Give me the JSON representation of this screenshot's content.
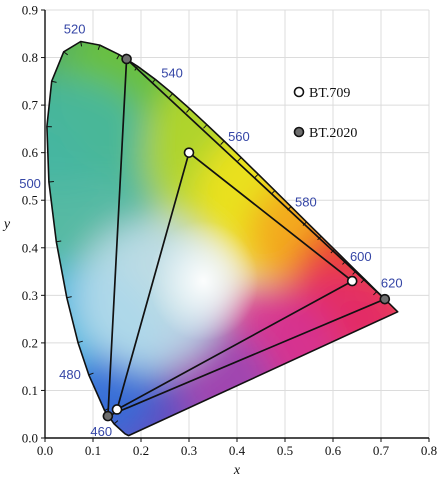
{
  "chart_data": {
    "type": "scatter",
    "title": "",
    "xlabel": "x",
    "ylabel": "y",
    "xlim": [
      0.0,
      0.8
    ],
    "ylim": [
      0.0,
      0.9
    ],
    "x_ticks": [
      "0.0",
      "0.1",
      "0.2",
      "0.3",
      "0.4",
      "0.5",
      "0.6",
      "0.7",
      "0.8"
    ],
    "y_ticks": [
      "0.0",
      "0.1",
      "0.2",
      "0.3",
      "0.4",
      "0.5",
      "0.6",
      "0.7",
      "0.8",
      "0.9"
    ],
    "grid": true,
    "legend_position": "top-right",
    "spectral_locus": [
      [
        0.1741,
        0.005
      ],
      [
        0.1666,
        0.0089
      ],
      [
        0.144,
        0.0297
      ],
      [
        0.1241,
        0.0578
      ],
      [
        0.0913,
        0.1327
      ],
      [
        0.0687,
        0.2007
      ],
      [
        0.0454,
        0.295
      ],
      [
        0.0235,
        0.4127
      ],
      [
        0.0082,
        0.5384
      ],
      [
        0.0039,
        0.6548
      ],
      [
        0.0139,
        0.7502
      ],
      [
        0.0389,
        0.812
      ],
      [
        0.0743,
        0.8338
      ],
      [
        0.1142,
        0.8262
      ],
      [
        0.1547,
        0.8059
      ],
      [
        0.1929,
        0.7816
      ],
      [
        0.2296,
        0.7543
      ],
      [
        0.2658,
        0.7243
      ],
      [
        0.3016,
        0.6923
      ],
      [
        0.3373,
        0.6589
      ],
      [
        0.3731,
        0.6245
      ],
      [
        0.4087,
        0.5896
      ],
      [
        0.4441,
        0.5547
      ],
      [
        0.4788,
        0.5202
      ],
      [
        0.5125,
        0.4866
      ],
      [
        0.5448,
        0.4544
      ],
      [
        0.5752,
        0.4242
      ],
      [
        0.6029,
        0.3965
      ],
      [
        0.627,
        0.3725
      ],
      [
        0.6482,
        0.3514
      ],
      [
        0.6658,
        0.334
      ],
      [
        0.6915,
        0.3083
      ],
      [
        0.7079,
        0.292
      ],
      [
        0.7347,
        0.2653
      ]
    ],
    "wavelength_labels": [
      {
        "nm": "460",
        "x": 0.144,
        "y": 0.0297
      },
      {
        "nm": "480",
        "x": 0.0913,
        "y": 0.1327
      },
      {
        "nm": "500",
        "x": 0.0082,
        "y": 0.5384
      },
      {
        "nm": "520",
        "x": 0.0743,
        "y": 0.8338
      },
      {
        "nm": "540",
        "x": 0.2296,
        "y": 0.7543
      },
      {
        "nm": "560",
        "x": 0.3731,
        "y": 0.6245
      },
      {
        "nm": "580",
        "x": 0.5125,
        "y": 0.4866
      },
      {
        "nm": "600",
        "x": 0.627,
        "y": 0.3725
      },
      {
        "nm": "620",
        "x": 0.6915,
        "y": 0.3083
      }
    ],
    "series": [
      {
        "name": "BT.709",
        "marker": "white",
        "points": [
          [
            0.64,
            0.33
          ],
          [
            0.3,
            0.6
          ],
          [
            0.15,
            0.06
          ]
        ]
      },
      {
        "name": "BT.2020",
        "marker": "gray",
        "points": [
          [
            0.708,
            0.292
          ],
          [
            0.17,
            0.797
          ],
          [
            0.131,
            0.046
          ]
        ]
      }
    ],
    "colors": {
      "bt709_fill": "#ffffff",
      "bt2020_fill": "#6e6e6e",
      "wavelength_text": "#3546a6",
      "line": "#111111"
    }
  }
}
